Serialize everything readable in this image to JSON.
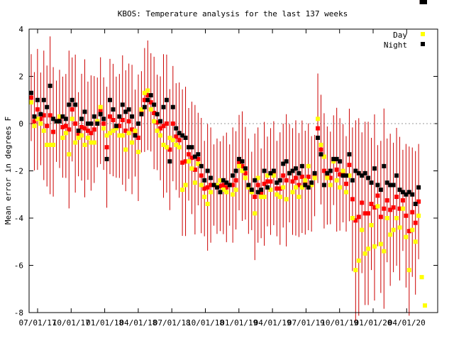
{
  "chart_data": {
    "type": "scatter",
    "title": "KBOS: Temperature analysis for the last 137 weeks",
    "xlabel": "",
    "ylabel": "Mean error in degrees F",
    "x_ticks": [
      "07/01/17",
      "10/01/17",
      "01/01/18",
      "04/01/18",
      "07/01/18",
      "10/01/18",
      "01/01/19",
      "04/01/19",
      "07/01/19",
      "10/01/19",
      "01/01/20",
      "04/01/20"
    ],
    "ylim": [
      -8,
      4
    ],
    "y_ticks": [
      -8,
      -6,
      -4,
      -2,
      0,
      2,
      4
    ],
    "reference_line": 0,
    "legend_position": "top-right",
    "colors": {
      "day": "#ffff00",
      "night": "#000000",
      "combined": "#ff0000",
      "errorbar": "#cc0000"
    },
    "series": [
      {
        "name": "Day",
        "color": "#ffff00",
        "values": [
          0.9,
          -0.1,
          0.2,
          0.0,
          -0.3,
          -0.9,
          -0.9,
          -0.9,
          0.1,
          0.3,
          -0.6,
          -0.4,
          -1.3,
          0.2,
          -0.8,
          -0.6,
          -0.5,
          -0.9,
          -0.6,
          -0.8,
          -0.8,
          0.1,
          0.7,
          -0.2,
          -0.5,
          -0.4,
          -0.3,
          -0.2,
          -0.5,
          -0.5,
          -1.1,
          -0.4,
          -0.8,
          -0.3,
          -1.2,
          0.6,
          1.3,
          1.4,
          0.6,
          0.1,
          -0.3,
          -0.5,
          -0.9,
          -1.0,
          -0.6,
          -0.7,
          -0.9,
          -1.0,
          -2.8,
          -2.6,
          -1.6,
          -1.9,
          -2.5,
          -1.7,
          -2.6,
          -3.1,
          -3.4,
          -2.9,
          -2.6,
          -2.6,
          -2.4,
          -2.8,
          -2.9,
          -2.6,
          -3.0,
          -2.8,
          -1.8,
          -2.0,
          -2.3,
          -2.7,
          -2.9,
          -3.8,
          -2.3,
          -3.1,
          -3.1,
          -2.2,
          -2.8,
          -2.2,
          -3.0,
          -3.1,
          -2.7,
          -3.2,
          -2.1,
          -2.9,
          -2.7,
          -3.1,
          -2.7,
          -2.4,
          -1.8,
          -2.6,
          -2.3,
          0.2,
          -0.9,
          -1.4,
          -2.3,
          -2.6,
          -1.6,
          -2.4,
          -2.7,
          -2.0,
          -2.9,
          -2.2,
          -4.0,
          -6.2,
          -5.8,
          -4.5,
          -5.5,
          -5.3,
          -4.3,
          -5.2,
          -3.5,
          -5.1,
          -5.4,
          -4.0,
          -4.7,
          -4.5,
          -4.0,
          -4.4,
          -3.6,
          -4.8,
          -6.2,
          -4.5,
          -5.0,
          -3.9,
          -6.5,
          -7.7
        ]
      },
      {
        "name": "Night",
        "color": "#000000",
        "values": [
          1.3,
          0.3,
          1.0,
          0.4,
          1.0,
          0.7,
          1.6,
          0.2,
          0.1,
          0.1,
          0.3,
          0.2,
          0.8,
          1.0,
          0.8,
          -0.3,
          0.2,
          0.5,
          0.0,
          0.0,
          0.3,
          0.0,
          0.4,
          0.2,
          -1.5,
          1.0,
          0.6,
          -0.1,
          0.3,
          0.8,
          0.5,
          0.6,
          0.3,
          -0.5,
          0.0,
          0.4,
          0.7,
          1.0,
          1.2,
          0.8,
          0.4,
          0.1,
          0.7,
          1.0,
          -1.6,
          0.7,
          -0.2,
          -0.4,
          -0.5,
          -0.6,
          -1.0,
          -1.0,
          -1.4,
          -1.3,
          -1.8,
          -2.4,
          -2.0,
          -2.3,
          -2.6,
          -2.7,
          -2.9,
          -2.4,
          -2.5,
          -2.6,
          -2.2,
          -2.0,
          -1.5,
          -1.6,
          -1.9,
          -2.6,
          -2.8,
          -2.4,
          -2.9,
          -2.8,
          -2.0,
          -2.7,
          -2.1,
          -2.0,
          -2.5,
          -2.4,
          -1.7,
          -1.6,
          -2.1,
          -2.0,
          -1.9,
          -2.1,
          -1.8,
          -2.6,
          -2.7,
          -2.5,
          -2.1,
          -0.6,
          -1.3,
          -2.6,
          -2.1,
          -2.0,
          -1.5,
          -1.5,
          -1.6,
          -2.2,
          -2.2,
          -1.3,
          -2.4,
          -2.0,
          -2.1,
          -2.2,
          -2.1,
          -2.3,
          -2.5,
          -1.9,
          -2.6,
          -2.8,
          -1.8,
          -2.5,
          -2.6,
          -2.6,
          -2.2,
          -2.8,
          -2.9,
          -3.0,
          -2.9,
          -3.0,
          -3.4,
          -2.7
        ]
      }
    ]
  }
}
